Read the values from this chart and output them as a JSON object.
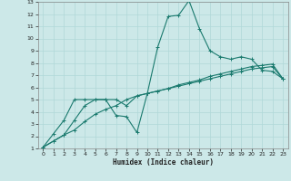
{
  "title": "",
  "xlabel": "Humidex (Indice chaleur)",
  "xlim": [
    -0.5,
    23.5
  ],
  "ylim": [
    1,
    13
  ],
  "xticks": [
    0,
    1,
    2,
    3,
    4,
    5,
    6,
    7,
    8,
    9,
    10,
    11,
    12,
    13,
    14,
    15,
    16,
    17,
    18,
    19,
    20,
    21,
    22,
    23
  ],
  "yticks": [
    1,
    2,
    3,
    4,
    5,
    6,
    7,
    8,
    9,
    10,
    11,
    12,
    13
  ],
  "bg_color": "#cce8e8",
  "line_color": "#1a7a6e",
  "grid_color": "#b0d8d8",
  "line1_x": [
    0,
    1,
    2,
    3,
    4,
    5,
    6,
    7,
    8,
    9,
    10,
    11,
    12,
    13,
    14,
    15,
    16,
    17,
    18,
    19,
    20,
    21,
    22,
    23
  ],
  "line1_y": [
    1.1,
    2.2,
    3.3,
    5.0,
    5.0,
    5.0,
    5.0,
    3.7,
    3.6,
    2.3,
    5.5,
    9.3,
    11.8,
    11.9,
    13.1,
    10.8,
    9.0,
    8.5,
    8.3,
    8.5,
    8.3,
    7.4,
    7.3,
    6.7
  ],
  "line2_x": [
    0,
    1,
    2,
    3,
    4,
    5,
    6,
    7,
    8,
    9,
    10,
    11,
    12,
    13,
    14,
    15,
    16,
    17,
    18,
    19,
    20,
    21,
    22,
    23
  ],
  "line2_y": [
    1.1,
    1.6,
    2.1,
    3.3,
    4.5,
    5.0,
    5.0,
    5.0,
    4.5,
    5.3,
    5.5,
    5.7,
    5.9,
    6.1,
    6.3,
    6.5,
    6.7,
    6.9,
    7.1,
    7.3,
    7.5,
    7.6,
    7.7,
    6.7
  ],
  "line3_x": [
    0,
    1,
    2,
    3,
    4,
    5,
    6,
    7,
    8,
    9,
    10,
    11,
    12,
    13,
    14,
    15,
    16,
    17,
    18,
    19,
    20,
    21,
    22,
    23
  ],
  "line3_y": [
    1.1,
    1.6,
    2.1,
    2.5,
    3.2,
    3.8,
    4.2,
    4.5,
    5.0,
    5.3,
    5.5,
    5.7,
    5.9,
    6.2,
    6.4,
    6.6,
    6.9,
    7.1,
    7.3,
    7.5,
    7.7,
    7.8,
    7.9,
    6.7
  ]
}
